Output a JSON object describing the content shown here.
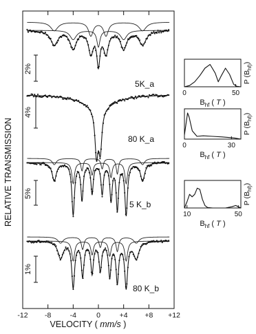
{
  "chart_data": [
    {
      "type": "line",
      "panel": "spectra",
      "xlabel": "VELOCITY",
      "xunit": "mm/s",
      "ylabel": "RELATIVE TRANSMISSION",
      "xlim": [
        -12,
        12
      ],
      "xticks": [
        "-12",
        "-8",
        "-4",
        "0",
        "+4",
        "+8",
        "+12"
      ],
      "spectra": [
        {
          "label": "5K_a",
          "scale": "2%",
          "lines": [
            {
              "center": -7.0,
              "depth": 0.35,
              "width": 1.4
            },
            {
              "center": -4.0,
              "depth": 0.45,
              "width": 1.2
            },
            {
              "center": -1.2,
              "depth": 0.55,
              "width": 0.9
            },
            {
              "center": 0.0,
              "depth": 0.8,
              "width": 0.6
            },
            {
              "center": 1.2,
              "depth": 0.55,
              "width": 0.9
            },
            {
              "center": 4.0,
              "depth": 0.45,
              "width": 1.2
            },
            {
              "center": 7.0,
              "depth": 0.35,
              "width": 1.4
            }
          ]
        },
        {
          "label": "80 K_a",
          "scale": "4%",
          "lines": [
            {
              "center": -0.3,
              "depth": 0.85,
              "width": 0.6
            },
            {
              "center": 0.3,
              "depth": 0.75,
              "width": 0.6
            },
            {
              "center": 0.0,
              "depth": 0.25,
              "width": 6.0
            }
          ]
        },
        {
          "label": "5 K_b",
          "scale": "5%",
          "lines": [
            {
              "center": -7.0,
              "depth": 0.3,
              "width": 0.8
            },
            {
              "center": -4.0,
              "depth": 0.85,
              "width": 0.5
            },
            {
              "center": -2.6,
              "depth": 0.6,
              "width": 0.45
            },
            {
              "center": -1.0,
              "depth": 0.5,
              "width": 0.45
            },
            {
              "center": 0.6,
              "depth": 0.5,
              "width": 0.45
            },
            {
              "center": 2.0,
              "depth": 0.6,
              "width": 0.45
            },
            {
              "center": 3.0,
              "depth": 0.75,
              "width": 0.45
            },
            {
              "center": 4.4,
              "depth": 0.85,
              "width": 0.5
            },
            {
              "center": 7.0,
              "depth": 0.3,
              "width": 0.8
            }
          ]
        },
        {
          "label": "80 K_b",
          "scale": "1%",
          "lines": [
            {
              "center": -6.0,
              "depth": 0.3,
              "width": 1.0
            },
            {
              "center": -4.0,
              "depth": 0.8,
              "width": 0.55
            },
            {
              "center": -2.5,
              "depth": 0.6,
              "width": 0.5
            },
            {
              "center": -1.0,
              "depth": 0.55,
              "width": 0.5
            },
            {
              "center": 0.3,
              "depth": 0.5,
              "width": 0.5
            },
            {
              "center": 1.8,
              "depth": 0.6,
              "width": 0.5
            },
            {
              "center": 3.0,
              "depth": 0.7,
              "width": 0.5
            },
            {
              "center": 4.4,
              "depth": 0.8,
              "width": 0.55
            },
            {
              "center": 6.0,
              "depth": 0.3,
              "width": 1.0
            }
          ]
        }
      ]
    },
    {
      "type": "line",
      "panel": "distribution-1",
      "ylabel": "P (B_hf)",
      "xlabel": "B_hf",
      "xunit": "T",
      "xlim": [
        0,
        55
      ],
      "xticks": [
        "0",
        "50"
      ],
      "x": [
        0,
        5,
        10,
        15,
        20,
        25,
        30,
        33,
        36,
        40,
        44,
        48,
        51,
        55
      ],
      "values": [
        0.0,
        0.05,
        0.2,
        0.45,
        0.75,
        0.9,
        0.55,
        0.2,
        0.45,
        0.75,
        0.5,
        0.1,
        0.02,
        0.0
      ]
    },
    {
      "type": "line",
      "panel": "distribution-2",
      "ylabel": "P (B_hf)",
      "xlabel": "B_hf",
      "xunit": "T",
      "xlim": [
        0,
        36
      ],
      "xticks": [
        "0",
        "30"
      ],
      "x": [
        0,
        1,
        2,
        3,
        5,
        8,
        12,
        18,
        24,
        28,
        32,
        36
      ],
      "values": [
        0.15,
        0.55,
        0.95,
        0.8,
        0.3,
        0.1,
        0.12,
        0.1,
        0.08,
        0.06,
        0.04,
        0.0
      ]
    },
    {
      "type": "line",
      "panel": "distribution-3",
      "ylabel": "P (B_hf)",
      "xlabel": "B_hf",
      "xunit": "T",
      "xlim": [
        8,
        52
      ],
      "xticks": [
        "10",
        "50"
      ],
      "x": [
        8,
        10,
        12,
        14,
        16,
        18,
        20,
        22,
        24,
        26,
        30,
        40,
        45,
        48,
        52
      ],
      "values": [
        0.0,
        0.25,
        0.55,
        0.45,
        0.55,
        0.8,
        0.75,
        0.35,
        0.1,
        0.02,
        0.0,
        0.0,
        0.05,
        0.1,
        0.0
      ]
    }
  ]
}
